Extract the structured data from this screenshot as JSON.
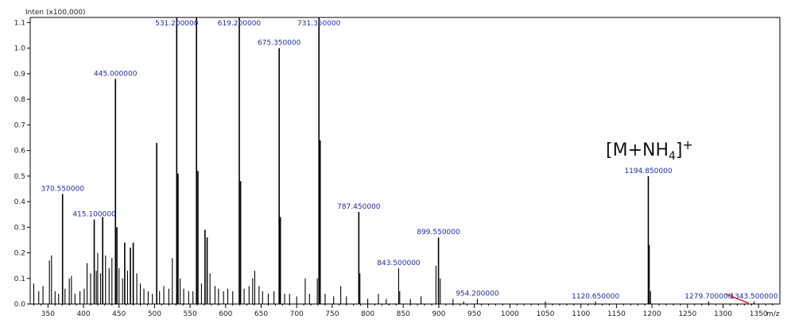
{
  "chart_data": {
    "type": "spectrum",
    "y_axis_title": "Inten (x100,000)",
    "x_axis_unit": "m/z",
    "xlim": [
      325,
      1380
    ],
    "ylim": [
      0,
      1.12
    ],
    "x_ticks": [
      350,
      400,
      450,
      500,
      550,
      600,
      650,
      700,
      750,
      800,
      850,
      900,
      950,
      1000,
      1050,
      1100,
      1150,
      1200,
      1250,
      1300,
      1350
    ],
    "y_ticks": [
      {
        "value": 0.0,
        "label": "0.0"
      },
      {
        "value": 0.1,
        "label": "0.1"
      },
      {
        "value": 0.2,
        "label": "0.2"
      },
      {
        "value": 0.3,
        "label": "0.3"
      },
      {
        "value": 0.4,
        "label": "0.4"
      },
      {
        "value": 0.5,
        "label": "0.5"
      },
      {
        "value": 0.6,
        "label": "0.6"
      },
      {
        "value": 0.7,
        "label": "0.7"
      },
      {
        "value": 0.8,
        "label": "0.8"
      },
      {
        "value": 0.9,
        "label": "0.9"
      },
      {
        "value": 1.0,
        "label": "1.0"
      },
      {
        "value": 1.1,
        "label": "1.1"
      }
    ],
    "labeled_peaks": [
      {
        "mz": 370.55,
        "intensity": 0.43,
        "label": "370.550000"
      },
      {
        "mz": 415.1,
        "intensity": 0.33,
        "label": "415.100000"
      },
      {
        "mz": 445.0,
        "intensity": 0.88,
        "label": "445.000000"
      },
      {
        "mz": 531.2,
        "intensity": 1.12,
        "label": "531.200000"
      },
      {
        "mz": 619.2,
        "intensity": 1.12,
        "label": "619.200000"
      },
      {
        "mz": 675.35,
        "intensity": 1.0,
        "label": "675.350000"
      },
      {
        "mz": 731.35,
        "intensity": 1.12,
        "label": "731.350000"
      },
      {
        "mz": 787.45,
        "intensity": 0.36,
        "label": "787.450000"
      },
      {
        "mz": 843.5,
        "intensity": 0.14,
        "label": "843.500000"
      },
      {
        "mz": 899.55,
        "intensity": 0.26,
        "label": "899.550000"
      },
      {
        "mz": 954.2,
        "intensity": 0.02,
        "label": "954.200000"
      },
      {
        "mz": 1120.65,
        "intensity": 0.01,
        "label": "1120.650000"
      },
      {
        "mz": 1194.85,
        "intensity": 0.5,
        "label": "1194.850000"
      },
      {
        "mz": 1279.7,
        "intensity": 0.01,
        "label": "1279.700000"
      },
      {
        "mz": 1343.5,
        "intensity": 0.01,
        "label": "1343.500000"
      }
    ],
    "other_peaks": [
      {
        "mz": 330,
        "intensity": 0.08
      },
      {
        "mz": 337,
        "intensity": 0.05
      },
      {
        "mz": 343,
        "intensity": 0.07
      },
      {
        "mz": 352,
        "intensity": 0.17
      },
      {
        "mz": 355,
        "intensity": 0.19
      },
      {
        "mz": 360,
        "intensity": 0.05
      },
      {
        "mz": 365,
        "intensity": 0.04
      },
      {
        "mz": 374,
        "intensity": 0.06
      },
      {
        "mz": 380,
        "intensity": 0.1
      },
      {
        "mz": 383,
        "intensity": 0.11
      },
      {
        "mz": 388,
        "intensity": 0.04
      },
      {
        "mz": 395,
        "intensity": 0.05
      },
      {
        "mz": 401,
        "intensity": 0.06
      },
      {
        "mz": 405,
        "intensity": 0.16
      },
      {
        "mz": 410,
        "intensity": 0.12
      },
      {
        "mz": 418,
        "intensity": 0.13
      },
      {
        "mz": 420,
        "intensity": 0.2
      },
      {
        "mz": 424,
        "intensity": 0.12
      },
      {
        "mz": 427,
        "intensity": 0.34
      },
      {
        "mz": 431,
        "intensity": 0.19
      },
      {
        "mz": 436,
        "intensity": 0.14
      },
      {
        "mz": 440,
        "intensity": 0.18
      },
      {
        "mz": 447,
        "intensity": 0.3
      },
      {
        "mz": 450,
        "intensity": 0.14
      },
      {
        "mz": 455,
        "intensity": 0.1
      },
      {
        "mz": 458,
        "intensity": 0.24
      },
      {
        "mz": 462,
        "intensity": 0.13
      },
      {
        "mz": 466,
        "intensity": 0.22
      },
      {
        "mz": 470,
        "intensity": 0.24
      },
      {
        "mz": 475,
        "intensity": 0.12
      },
      {
        "mz": 480,
        "intensity": 0.08
      },
      {
        "mz": 485,
        "intensity": 0.06
      },
      {
        "mz": 491,
        "intensity": 0.05
      },
      {
        "mz": 497,
        "intensity": 0.04
      },
      {
        "mz": 503,
        "intensity": 0.63
      },
      {
        "mz": 507,
        "intensity": 0.05
      },
      {
        "mz": 513,
        "intensity": 0.07
      },
      {
        "mz": 520,
        "intensity": 0.06
      },
      {
        "mz": 525,
        "intensity": 0.18
      },
      {
        "mz": 533,
        "intensity": 0.51
      },
      {
        "mz": 536,
        "intensity": 0.1
      },
      {
        "mz": 541,
        "intensity": 0.06
      },
      {
        "mz": 548,
        "intensity": 0.05
      },
      {
        "mz": 554,
        "intensity": 0.05
      },
      {
        "mz": 559,
        "intensity": 1.12
      },
      {
        "mz": 561,
        "intensity": 0.52
      },
      {
        "mz": 566,
        "intensity": 0.08
      },
      {
        "mz": 571,
        "intensity": 0.29
      },
      {
        "mz": 574,
        "intensity": 0.26
      },
      {
        "mz": 578,
        "intensity": 0.12
      },
      {
        "mz": 585,
        "intensity": 0.07
      },
      {
        "mz": 590,
        "intensity": 0.06
      },
      {
        "mz": 597,
        "intensity": 0.05
      },
      {
        "mz": 603,
        "intensity": 0.06
      },
      {
        "mz": 610,
        "intensity": 0.05
      },
      {
        "mz": 621,
        "intensity": 0.48
      },
      {
        "mz": 626,
        "intensity": 0.06
      },
      {
        "mz": 633,
        "intensity": 0.07
      },
      {
        "mz": 638,
        "intensity": 0.1
      },
      {
        "mz": 641,
        "intensity": 0.13
      },
      {
        "mz": 647,
        "intensity": 0.07
      },
      {
        "mz": 652,
        "intensity": 0.05
      },
      {
        "mz": 660,
        "intensity": 0.04
      },
      {
        "mz": 668,
        "intensity": 0.05
      },
      {
        "mz": 677,
        "intensity": 0.34
      },
      {
        "mz": 683,
        "intensity": 0.04
      },
      {
        "mz": 690,
        "intensity": 0.04
      },
      {
        "mz": 700,
        "intensity": 0.03
      },
      {
        "mz": 712,
        "intensity": 0.1
      },
      {
        "mz": 718,
        "intensity": 0.04
      },
      {
        "mz": 729,
        "intensity": 0.1
      },
      {
        "mz": 733,
        "intensity": 0.64
      },
      {
        "mz": 740,
        "intensity": 0.04
      },
      {
        "mz": 752,
        "intensity": 0.03
      },
      {
        "mz": 762,
        "intensity": 0.07
      },
      {
        "mz": 770,
        "intensity": 0.03
      },
      {
        "mz": 789,
        "intensity": 0.12
      },
      {
        "mz": 800,
        "intensity": 0.02
      },
      {
        "mz": 815,
        "intensity": 0.04
      },
      {
        "mz": 826,
        "intensity": 0.02
      },
      {
        "mz": 845,
        "intensity": 0.05
      },
      {
        "mz": 860,
        "intensity": 0.02
      },
      {
        "mz": 875,
        "intensity": 0.03
      },
      {
        "mz": 896,
        "intensity": 0.15
      },
      {
        "mz": 902,
        "intensity": 0.1
      },
      {
        "mz": 920,
        "intensity": 0.02
      },
      {
        "mz": 935,
        "intensity": 0.01
      },
      {
        "mz": 1050,
        "intensity": 0.01
      },
      {
        "mz": 1196,
        "intensity": 0.23
      },
      {
        "mz": 1198,
        "intensity": 0.05
      }
    ],
    "annotation": {
      "text": "[M+NH",
      "subscript": "4",
      "bracket": "]",
      "superscript": "+",
      "target_mz": 1194.85
    },
    "colors": {
      "peaks": "#000000",
      "peak_labels": "#1a2fa0",
      "marker_line": "#cc2222"
    }
  }
}
